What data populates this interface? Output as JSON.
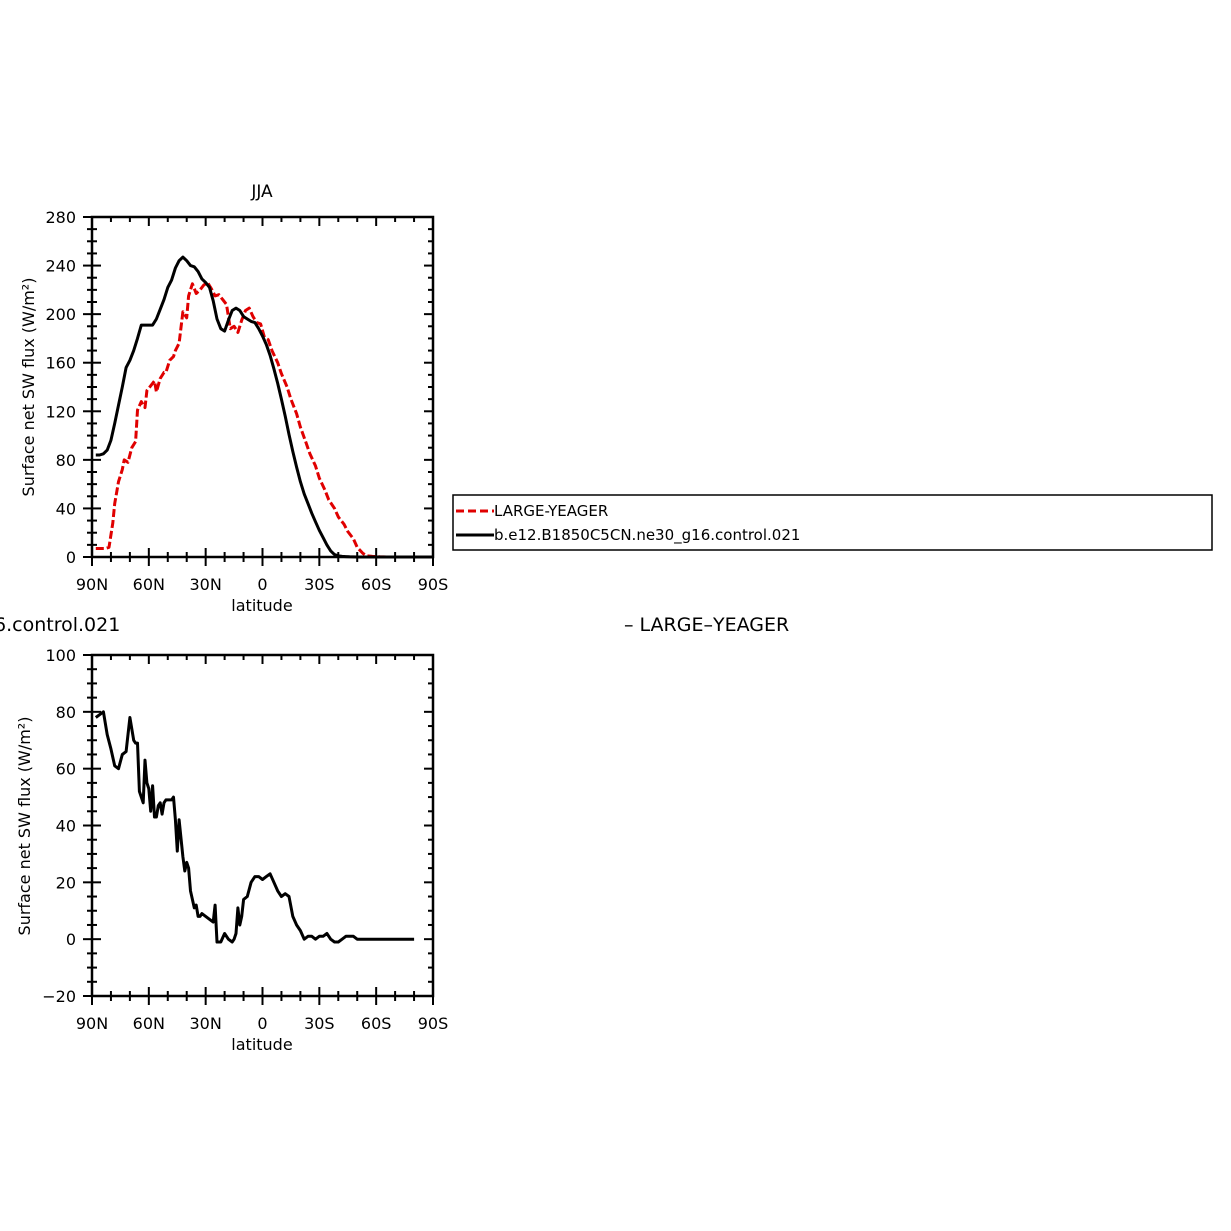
{
  "chart_data": [
    {
      "type": "line",
      "title": "JJA",
      "xlabel": "latitude",
      "ylabel": "Surface net SW flux (W/m²)",
      "xticks": [
        "90N",
        "60N",
        "30N",
        "0",
        "30S",
        "60S",
        "90S"
      ],
      "xlim": [
        -90,
        90
      ],
      "ylim": [
        0,
        280
      ],
      "yticks": [
        0,
        40,
        80,
        120,
        160,
        200,
        240,
        280
      ],
      "grid": false,
      "legend": "right",
      "series": [
        {
          "name": "LARGE-YEAGER",
          "color": "#e00000",
          "dash": "dashed",
          "x": [
            -88,
            -85,
            -83,
            -81,
            -79,
            -78,
            -76,
            -74,
            -73,
            -71,
            -69,
            -67,
            -66,
            -64,
            -62,
            -61,
            -59,
            -57,
            -56,
            -54,
            -52,
            -51,
            -49,
            -47,
            -46,
            -44,
            -42,
            -40,
            -39,
            -37,
            -35,
            -33,
            -31,
            -29,
            -27,
            -25,
            -23,
            -21,
            -19,
            -17,
            -15,
            -13,
            -11,
            -9,
            -7,
            -5,
            -3,
            -1,
            1,
            3,
            5,
            8,
            10,
            13,
            15,
            18,
            20,
            23,
            25,
            28,
            30,
            33,
            35,
            38,
            40,
            43,
            45,
            48,
            50,
            53,
            55,
            58,
            60,
            62,
            64,
            66,
            68,
            70,
            75,
            80,
            85,
            90
          ],
          "y": [
            7,
            7,
            7,
            8,
            28,
            44,
            62,
            72,
            80,
            78,
            90,
            95,
            121,
            128,
            123,
            137,
            141,
            145,
            136,
            147,
            152,
            152,
            162,
            165,
            170,
            176,
            202,
            197,
            215,
            225,
            217,
            220,
            224,
            226,
            221,
            215,
            216,
            212,
            208,
            188,
            190,
            185,
            195,
            203,
            205,
            198,
            193,
            192,
            181,
            179,
            170,
            160,
            151,
            140,
            130,
            118,
            107,
            94,
            85,
            75,
            65,
            55,
            47,
            40,
            33,
            27,
            21,
            15,
            8,
            3,
            1,
            0.5,
            0.3,
            0.2,
            0.1,
            0,
            0,
            0,
            0,
            0,
            0,
            0
          ]
        },
        {
          "name": "b.e12.B1850C5CN.ne30_g16.control.021",
          "color": "#000000",
          "dash": "solid",
          "x": [
            -88,
            -86,
            -84,
            -82,
            -80,
            -78,
            -76,
            -74,
            -72,
            -70,
            -68,
            -66,
            -64,
            -62,
            -60,
            -58,
            -56,
            -54,
            -52,
            -50,
            -48,
            -46,
            -44,
            -42,
            -40,
            -38,
            -36,
            -34,
            -32,
            -30,
            -28,
            -26,
            -24,
            -22,
            -20,
            -18,
            -16,
            -14,
            -12,
            -10,
            -8,
            -6,
            -4,
            -2,
            0,
            2,
            4,
            6,
            8,
            10,
            12,
            14,
            16,
            18,
            20,
            22,
            24,
            26,
            28,
            30,
            32,
            34,
            36,
            38,
            40,
            42,
            44,
            46,
            48,
            50,
            52,
            54,
            56,
            58,
            60,
            62,
            64,
            66,
            68,
            70,
            75,
            80,
            85,
            90
          ],
          "y": [
            84,
            84,
            85,
            88,
            96,
            110,
            125,
            140,
            156,
            162,
            170,
            180,
            191,
            191,
            191,
            191,
            196,
            204,
            212,
            222,
            228,
            238,
            244,
            247,
            244,
            240,
            239,
            235,
            229,
            226,
            222,
            211,
            196,
            188,
            186,
            195,
            203,
            205,
            203,
            198,
            196,
            194,
            193,
            188,
            182,
            175,
            166,
            155,
            143,
            130,
            116,
            101,
            87,
            74,
            62,
            52,
            44,
            36,
            29,
            22,
            16,
            10,
            5,
            2,
            1,
            0.5,
            0.3,
            0.2,
            0.1,
            0,
            0,
            0,
            0,
            0,
            0,
            0,
            0,
            0,
            0,
            0,
            0,
            0,
            0,
            0
          ]
        }
      ],
      "legend_entries": [
        "LARGE-YEAGER",
        "b.e12.B1850C5CN.ne30_g16.control.021"
      ]
    },
    {
      "type": "line",
      "title": "",
      "title_fragment": "6.control.021",
      "right_fragment": "– LARGE–YEAGER",
      "xlabel": "latitude",
      "ylabel": "Surface net SW flux (W/m²)",
      "xticks": [
        "90N",
        "60N",
        "30N",
        "0",
        "30S",
        "60S",
        "90S"
      ],
      "xlim": [
        -90,
        90
      ],
      "ylim": [
        -20,
        100
      ],
      "yticks": [
        -20,
        0,
        20,
        40,
        60,
        80,
        100
      ],
      "grid": false,
      "series": [
        {
          "color": "#000000",
          "dash": "solid",
          "x": [
            -88,
            -86,
            -84,
            -82,
            -80,
            -78,
            -76,
            -74,
            -72,
            -70,
            -69,
            -68,
            -67,
            -66,
            -65,
            -63,
            -62,
            -61,
            -60,
            -59,
            -58,
            -57,
            -56,
            -55,
            -54,
            -53,
            -52,
            -51,
            -50,
            -49,
            -48,
            -47,
            -46,
            -45,
            -44,
            -42,
            -41,
            -40,
            -39,
            -38,
            -37,
            -36,
            -35,
            -34,
            -33,
            -32,
            -30,
            -28,
            -26,
            -25,
            -24,
            -22,
            -20,
            -18,
            -16,
            -15,
            -14,
            -13,
            -12,
            -11,
            -10,
            -8,
            -6,
            -4,
            -2,
            0,
            2,
            4,
            6,
            8,
            10,
            12,
            14,
            16,
            18,
            20,
            22,
            24,
            26,
            28,
            30,
            32,
            34,
            36,
            38,
            40,
            42,
            44,
            46,
            48,
            50,
            52,
            54,
            56,
            58,
            60,
            62,
            64,
            66,
            68,
            70,
            72,
            74,
            76,
            78,
            80
          ],
          "y": [
            78,
            79,
            80,
            72,
            67,
            61,
            60,
            65,
            66,
            78,
            74,
            70,
            69,
            69,
            52,
            48,
            63,
            55,
            53,
            45,
            54,
            43,
            43,
            47,
            48,
            44,
            48,
            49,
            49,
            49,
            49,
            50,
            42,
            31,
            42,
            29,
            24,
            27,
            25,
            17,
            14,
            11,
            12,
            8,
            8,
            9,
            8,
            7,
            6,
            12,
            -1,
            -1,
            2,
            0,
            -1,
            0,
            2,
            11,
            5,
            8,
            14,
            15,
            20,
            22,
            22,
            21,
            22,
            23,
            20,
            17,
            15,
            16,
            15,
            8,
            5,
            3,
            0,
            1,
            1,
            0,
            1,
            1,
            2,
            0,
            -1,
            -1,
            0,
            1,
            1,
            1,
            0,
            0,
            0,
            0,
            0,
            0,
            0,
            0,
            0,
            0,
            0,
            0,
            0,
            0,
            0,
            0
          ]
        }
      ]
    }
  ]
}
